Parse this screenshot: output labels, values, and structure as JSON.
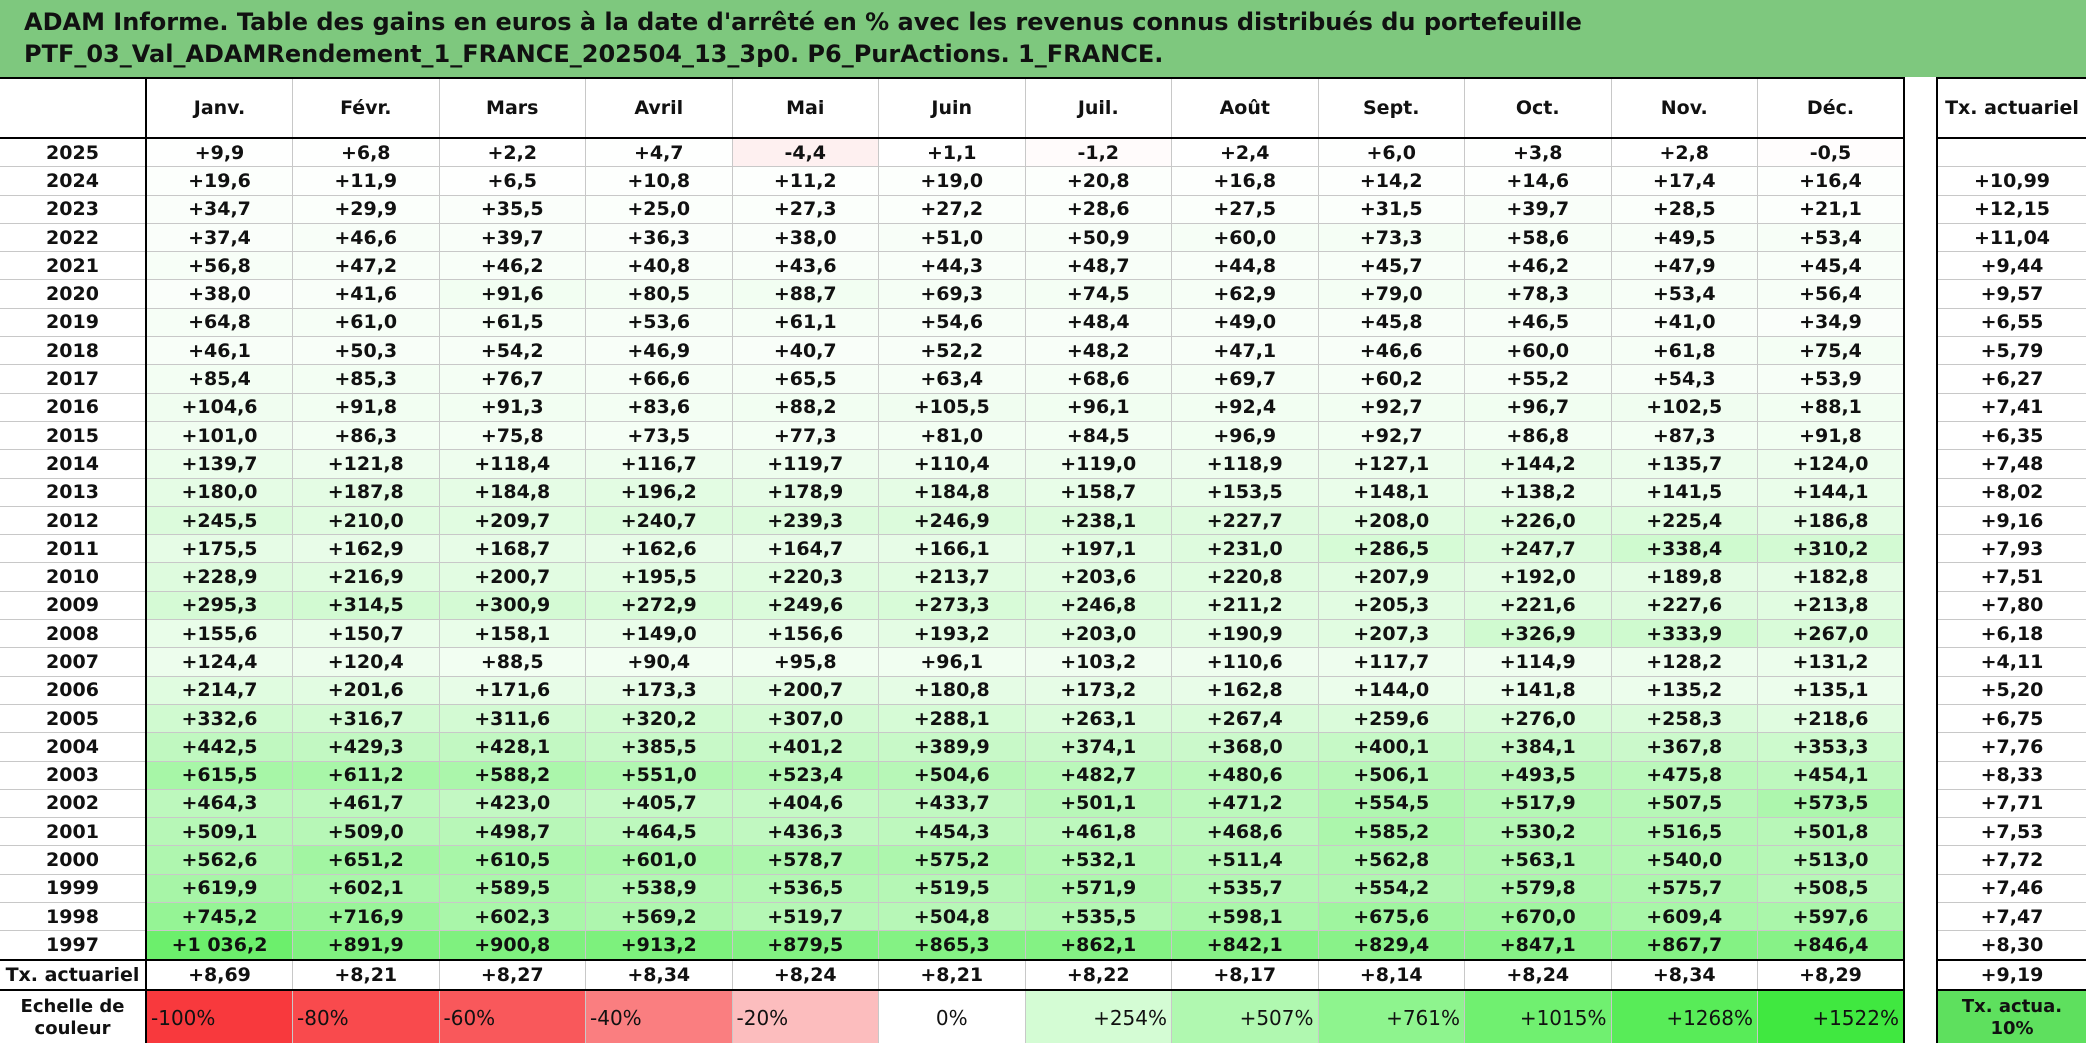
{
  "header": {
    "title_lines": [
      "ADAM Informe. Table des gains en euros à la date d'arrêté en % avec les revenus connus distribués du portefeuille",
      "PTF_03_Val_ADAMRendement_1_FRANCE_202504_13_3p0. P6_PurActions. 1_FRANCE."
    ]
  },
  "table": {
    "columns": [
      "Janv.",
      "Févr.",
      "Mars",
      "Avril",
      "Mai",
      "Juin",
      "Juil.",
      "Août",
      "Sept.",
      "Oct.",
      "Nov.",
      "Déc."
    ],
    "rate_header": "Tx. actuariel",
    "rows": [
      {
        "year": "2025",
        "values": [
          "+9,9",
          "+6,8",
          "+2,2",
          "+4,7",
          "-4,4",
          "+1,1",
          "-1,2",
          "+2,4",
          "+6,0",
          "+3,8",
          "+2,8",
          "-0,5"
        ]
      },
      {
        "year": "2024",
        "values": [
          "+19,6",
          "+11,9",
          "+6,5",
          "+10,8",
          "+11,2",
          "+19,0",
          "+20,8",
          "+16,8",
          "+14,2",
          "+14,6",
          "+17,4",
          "+16,4"
        ],
        "rate": "+10,99"
      },
      {
        "year": "2023",
        "values": [
          "+34,7",
          "+29,9",
          "+35,5",
          "+25,0",
          "+27,3",
          "+27,2",
          "+28,6",
          "+27,5",
          "+31,5",
          "+39,7",
          "+28,5",
          "+21,1"
        ],
        "rate": "+12,15"
      },
      {
        "year": "2022",
        "values": [
          "+37,4",
          "+46,6",
          "+39,7",
          "+36,3",
          "+38,0",
          "+51,0",
          "+50,9",
          "+60,0",
          "+73,3",
          "+58,6",
          "+49,5",
          "+53,4"
        ],
        "rate": "+11,04"
      },
      {
        "year": "2021",
        "values": [
          "+56,8",
          "+47,2",
          "+46,2",
          "+40,8",
          "+43,6",
          "+44,3",
          "+48,7",
          "+44,8",
          "+45,7",
          "+46,2",
          "+47,9",
          "+45,4"
        ],
        "rate": "+9,44"
      },
      {
        "year": "2020",
        "values": [
          "+38,0",
          "+41,6",
          "+91,6",
          "+80,5",
          "+88,7",
          "+69,3",
          "+74,5",
          "+62,9",
          "+79,0",
          "+78,3",
          "+53,4",
          "+56,4"
        ],
        "rate": "+9,57"
      },
      {
        "year": "2019",
        "values": [
          "+64,8",
          "+61,0",
          "+61,5",
          "+53,6",
          "+61,1",
          "+54,6",
          "+48,4",
          "+49,0",
          "+45,8",
          "+46,5",
          "+41,0",
          "+34,9"
        ],
        "rate": "+6,55"
      },
      {
        "year": "2018",
        "values": [
          "+46,1",
          "+50,3",
          "+54,2",
          "+46,9",
          "+40,7",
          "+52,2",
          "+48,2",
          "+47,1",
          "+46,6",
          "+60,0",
          "+61,8",
          "+75,4"
        ],
        "rate": "+5,79"
      },
      {
        "year": "2017",
        "values": [
          "+85,4",
          "+85,3",
          "+76,7",
          "+66,6",
          "+65,5",
          "+63,4",
          "+68,6",
          "+69,7",
          "+60,2",
          "+55,2",
          "+54,3",
          "+53,9"
        ],
        "rate": "+6,27"
      },
      {
        "year": "2016",
        "values": [
          "+104,6",
          "+91,8",
          "+91,3",
          "+83,6",
          "+88,2",
          "+105,5",
          "+96,1",
          "+92,4",
          "+92,7",
          "+96,7",
          "+102,5",
          "+88,1"
        ],
        "rate": "+7,41"
      },
      {
        "year": "2015",
        "values": [
          "+101,0",
          "+86,3",
          "+75,8",
          "+73,5",
          "+77,3",
          "+81,0",
          "+84,5",
          "+96,9",
          "+92,7",
          "+86,8",
          "+87,3",
          "+91,8"
        ],
        "rate": "+6,35"
      },
      {
        "year": "2014",
        "values": [
          "+139,7",
          "+121,8",
          "+118,4",
          "+116,7",
          "+119,7",
          "+110,4",
          "+119,0",
          "+118,9",
          "+127,1",
          "+144,2",
          "+135,7",
          "+124,0"
        ],
        "rate": "+7,48"
      },
      {
        "year": "2013",
        "values": [
          "+180,0",
          "+187,8",
          "+184,8",
          "+196,2",
          "+178,9",
          "+184,8",
          "+158,7",
          "+153,5",
          "+148,1",
          "+138,2",
          "+141,5",
          "+144,1"
        ],
        "rate": "+8,02"
      },
      {
        "year": "2012",
        "values": [
          "+245,5",
          "+210,0",
          "+209,7",
          "+240,7",
          "+239,3",
          "+246,9",
          "+238,1",
          "+227,7",
          "+208,0",
          "+226,0",
          "+225,4",
          "+186,8"
        ],
        "rate": "+9,16"
      },
      {
        "year": "2011",
        "values": [
          "+175,5",
          "+162,9",
          "+168,7",
          "+162,6",
          "+164,7",
          "+166,1",
          "+197,1",
          "+231,0",
          "+286,5",
          "+247,7",
          "+338,4",
          "+310,2"
        ],
        "rate": "+7,93"
      },
      {
        "year": "2010",
        "values": [
          "+228,9",
          "+216,9",
          "+200,7",
          "+195,5",
          "+220,3",
          "+213,7",
          "+203,6",
          "+220,8",
          "+207,9",
          "+192,0",
          "+189,8",
          "+182,8"
        ],
        "rate": "+7,51"
      },
      {
        "year": "2009",
        "values": [
          "+295,3",
          "+314,5",
          "+300,9",
          "+272,9",
          "+249,6",
          "+273,3",
          "+246,8",
          "+211,2",
          "+205,3",
          "+221,6",
          "+227,6",
          "+213,8"
        ],
        "rate": "+7,80"
      },
      {
        "year": "2008",
        "values": [
          "+155,6",
          "+150,7",
          "+158,1",
          "+149,0",
          "+156,6",
          "+193,2",
          "+203,0",
          "+190,9",
          "+207,3",
          "+326,9",
          "+333,9",
          "+267,0"
        ],
        "rate": "+6,18"
      },
      {
        "year": "2007",
        "values": [
          "+124,4",
          "+120,4",
          "+88,5",
          "+90,4",
          "+95,8",
          "+96,1",
          "+103,2",
          "+110,6",
          "+117,7",
          "+114,9",
          "+128,2",
          "+131,2"
        ],
        "rate": "+4,11"
      },
      {
        "year": "2006",
        "values": [
          "+214,7",
          "+201,6",
          "+171,6",
          "+173,3",
          "+200,7",
          "+180,8",
          "+173,2",
          "+162,8",
          "+144,0",
          "+141,8",
          "+135,2",
          "+135,1"
        ],
        "rate": "+5,20"
      },
      {
        "year": "2005",
        "values": [
          "+332,6",
          "+316,7",
          "+311,6",
          "+320,2",
          "+307,0",
          "+288,1",
          "+263,1",
          "+267,4",
          "+259,6",
          "+276,0",
          "+258,3",
          "+218,6"
        ],
        "rate": "+6,75"
      },
      {
        "year": "2004",
        "values": [
          "+442,5",
          "+429,3",
          "+428,1",
          "+385,5",
          "+401,2",
          "+389,9",
          "+374,1",
          "+368,0",
          "+400,1",
          "+384,1",
          "+367,8",
          "+353,3"
        ],
        "rate": "+7,76"
      },
      {
        "year": "2003",
        "values": [
          "+615,5",
          "+611,2",
          "+588,2",
          "+551,0",
          "+523,4",
          "+504,6",
          "+482,7",
          "+480,6",
          "+506,1",
          "+493,5",
          "+475,8",
          "+454,1"
        ],
        "rate": "+8,33"
      },
      {
        "year": "2002",
        "values": [
          "+464,3",
          "+461,7",
          "+423,0",
          "+405,7",
          "+404,6",
          "+433,7",
          "+501,1",
          "+471,2",
          "+554,5",
          "+517,9",
          "+507,5",
          "+573,5"
        ],
        "rate": "+7,71"
      },
      {
        "year": "2001",
        "values": [
          "+509,1",
          "+509,0",
          "+498,7",
          "+464,5",
          "+436,3",
          "+454,3",
          "+461,8",
          "+468,6",
          "+585,2",
          "+530,2",
          "+516,5",
          "+501,8"
        ],
        "rate": "+7,53"
      },
      {
        "year": "2000",
        "values": [
          "+562,6",
          "+651,2",
          "+610,5",
          "+601,0",
          "+578,7",
          "+575,2",
          "+532,1",
          "+511,4",
          "+562,8",
          "+563,1",
          "+540,0",
          "+513,0"
        ],
        "rate": "+7,72"
      },
      {
        "year": "1999",
        "values": [
          "+619,9",
          "+602,1",
          "+589,5",
          "+538,9",
          "+536,5",
          "+519,5",
          "+571,9",
          "+535,7",
          "+554,2",
          "+579,8",
          "+575,7",
          "+508,5"
        ],
        "rate": "+7,46"
      },
      {
        "year": "1998",
        "values": [
          "+745,2",
          "+716,9",
          "+602,3",
          "+569,2",
          "+519,7",
          "+504,8",
          "+535,5",
          "+598,1",
          "+675,6",
          "+670,0",
          "+609,4",
          "+597,6"
        ],
        "rate": "+7,47"
      },
      {
        "year": "1997",
        "values": [
          "+1 036,2",
          "+891,9",
          "+900,8",
          "+913,2",
          "+879,5",
          "+865,3",
          "+862,1",
          "+842,1",
          "+829,4",
          "+847,1",
          "+867,7",
          "+846,4"
        ],
        "rate": "+8,30"
      }
    ],
    "footer": {
      "label": "Tx. actuariel",
      "values": [
        "+8,69",
        "+8,21",
        "+8,27",
        "+8,34",
        "+8,24",
        "+8,21",
        "+8,22",
        "+8,17",
        "+8,14",
        "+8,24",
        "+8,34",
        "+8,29"
      ],
      "rate": "+9,19"
    },
    "scale": {
      "label": "Echelle de couleur",
      "values": [
        "-100%",
        "-80%",
        "-60%",
        "-40%",
        "-20%",
        "0%",
        "+254%",
        "+507%",
        "+761%",
        "+1015%",
        "+1268%",
        "+1522%"
      ],
      "rate": "Tx. actua. 10%"
    }
  }
}
